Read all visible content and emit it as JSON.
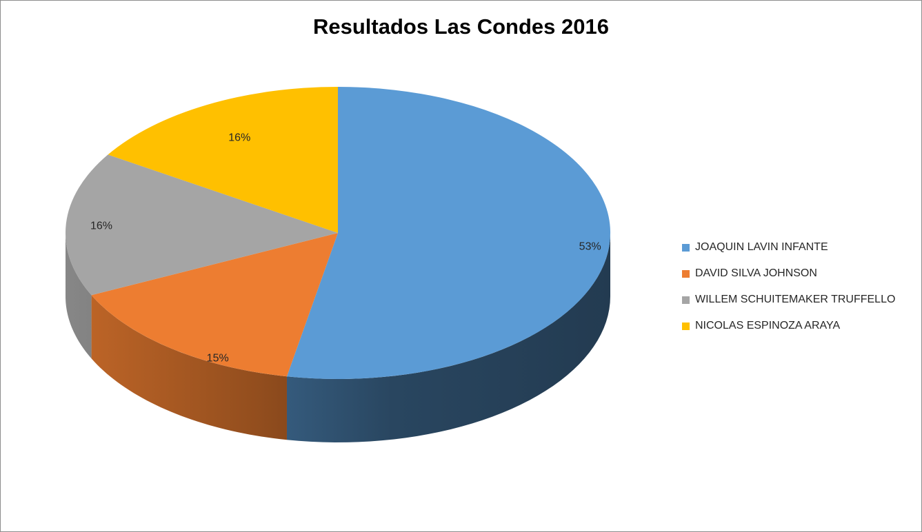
{
  "chart_data": {
    "type": "pie",
    "title": "Resultados Las Condes 2016",
    "three_d": true,
    "legend_position": "right",
    "categories": [
      "JOAQUIN LAVIN INFANTE",
      "DAVID SILVA JOHNSON",
      "WILLEM SCHUITEMAKER TRUFFELLO",
      "NICOLAS ESPINOZA ARAYA"
    ],
    "values": [
      53,
      15,
      16,
      16
    ],
    "labels": [
      "53%",
      "15%",
      "16%",
      "16%"
    ],
    "colors": [
      "#5b9bd5",
      "#ed7d31",
      "#a5a5a5",
      "#ffc000"
    ]
  }
}
